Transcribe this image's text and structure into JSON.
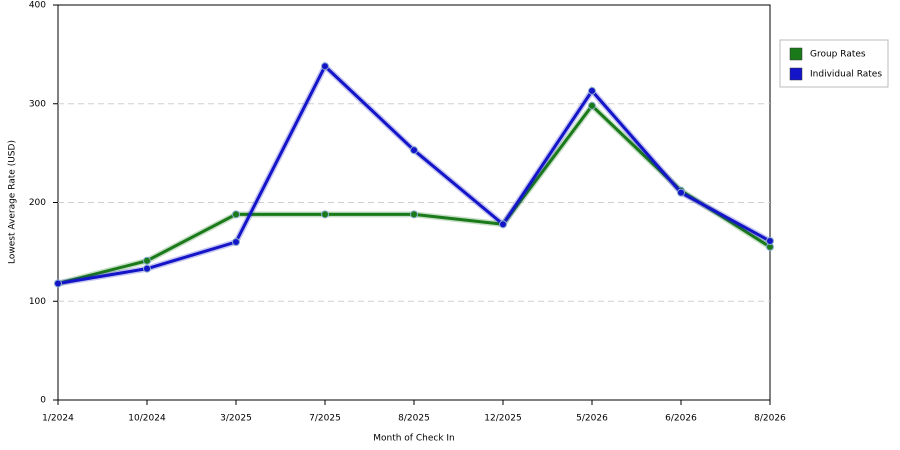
{
  "chart_data": {
    "type": "line",
    "x_label": "Month of Check In",
    "y_label": "Lowest Average Rate (USD)",
    "categories": [
      "1/2024",
      "10/2024",
      "3/2025",
      "7/2025",
      "8/2025",
      "12/2025",
      "5/2026",
      "6/2026",
      "8/2026"
    ],
    "series": [
      {
        "name": "Group Rates",
        "color": "#1a7a1a",
        "values": [
          118,
          141,
          188,
          188,
          188,
          178,
          298,
          212,
          155
        ]
      },
      {
        "name": "Individual Rates",
        "color": "#1414c8",
        "values": [
          118,
          133,
          160,
          338,
          253,
          178,
          313,
          210,
          161
        ]
      }
    ],
    "ylim": [
      0,
      400
    ],
    "yticks": [
      0,
      100,
      200,
      300,
      400
    ],
    "grid": true,
    "legend": "right"
  }
}
